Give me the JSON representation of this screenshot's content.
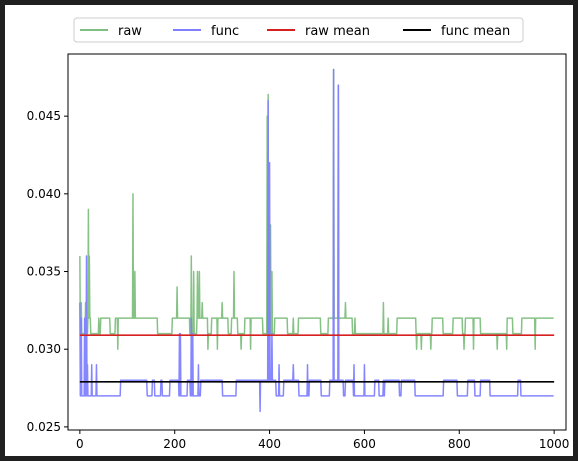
{
  "chart_data": {
    "type": "line",
    "title": "",
    "xlabel": "",
    "ylabel": "",
    "xlim": [
      -25,
      1025
    ],
    "ylim": [
      0.0248,
      0.049
    ],
    "xticks": [
      0,
      200,
      400,
      600,
      800,
      1000
    ],
    "yticks": [
      0.025,
      0.03,
      0.035,
      0.04,
      0.045
    ],
    "xtick_labels": [
      "0",
      "200",
      "400",
      "600",
      "800",
      "1000"
    ],
    "ytick_labels": [
      "0.025",
      "0.030",
      "0.035",
      "0.040",
      "0.045"
    ],
    "grid": false,
    "legend_position": "top-center outside",
    "series": [
      {
        "name": "raw",
        "color": "#7fbf7f",
        "baseline": 0.031,
        "low": 0.032,
        "n": 1000,
        "spikes": [
          [
            0,
            0.036
          ],
          [
            3,
            0.033
          ],
          [
            12,
            0.033
          ],
          [
            18,
            0.039
          ],
          [
            20,
            0.036
          ],
          [
            40,
            0.032
          ],
          [
            80,
            0.03
          ],
          [
            112,
            0.04
          ],
          [
            116,
            0.035
          ],
          [
            160,
            0.032
          ],
          [
            170,
            0.031
          ],
          [
            205,
            0.034
          ],
          [
            235,
            0.036
          ],
          [
            240,
            0.035
          ],
          [
            248,
            0.035
          ],
          [
            252,
            0.035
          ],
          [
            258,
            0.033
          ],
          [
            270,
            0.03
          ],
          [
            290,
            0.03
          ],
          [
            300,
            0.033
          ],
          [
            325,
            0.035
          ],
          [
            340,
            0.03
          ],
          [
            360,
            0.03
          ],
          [
            395,
            0.045
          ],
          [
            397,
            0.0464
          ],
          [
            402,
            0.038
          ],
          [
            405,
            0.035
          ],
          [
            420,
            0.032
          ],
          [
            450,
            0.032
          ],
          [
            500,
            0.032
          ],
          [
            535,
            0.048
          ],
          [
            545,
            0.047
          ],
          [
            560,
            0.033
          ],
          [
            580,
            0.032
          ],
          [
            640,
            0.033
          ],
          [
            650,
            0.032
          ],
          [
            700,
            0.032
          ],
          [
            710,
            0.03
          ],
          [
            720,
            0.03
          ],
          [
            740,
            0.03
          ],
          [
            760,
            0.032
          ],
          [
            810,
            0.03
          ],
          [
            830,
            0.03
          ],
          [
            880,
            0.03
          ],
          [
            900,
            0.03
          ],
          [
            960,
            0.03
          ]
        ]
      },
      {
        "name": "func",
        "color": "#7f7fff",
        "baseline": 0.028,
        "low": 0.027,
        "n": 1000,
        "spikes": [
          [
            0,
            0.033
          ],
          [
            3,
            0.032
          ],
          [
            10,
            0.032
          ],
          [
            14,
            0.036
          ],
          [
            16,
            0.029
          ],
          [
            25,
            0.029
          ],
          [
            35,
            0.029
          ],
          [
            112,
            0.028
          ],
          [
            210,
            0.031
          ],
          [
            212,
            0.031
          ],
          [
            235,
            0.032
          ],
          [
            238,
            0.031
          ],
          [
            250,
            0.029
          ],
          [
            270,
            0.028
          ],
          [
            300,
            0.028
          ],
          [
            380,
            0.026
          ],
          [
            397,
            0.046
          ],
          [
            400,
            0.042
          ],
          [
            405,
            0.031
          ],
          [
            420,
            0.029
          ],
          [
            450,
            0.029
          ],
          [
            480,
            0.029
          ],
          [
            535,
            0.048
          ],
          [
            545,
            0.047
          ],
          [
            578,
            0.029
          ],
          [
            600,
            0.029
          ],
          [
            640,
            0.028
          ],
          [
            700,
            0.028
          ]
        ]
      },
      {
        "name": "raw mean",
        "color": "#d62020",
        "x": [
          0,
          1000
        ],
        "values": [
          0.0309,
          0.0309
        ]
      },
      {
        "name": "func mean",
        "color": "#000000",
        "x": [
          0,
          1000
        ],
        "values": [
          0.0279,
          0.0279
        ]
      }
    ]
  }
}
